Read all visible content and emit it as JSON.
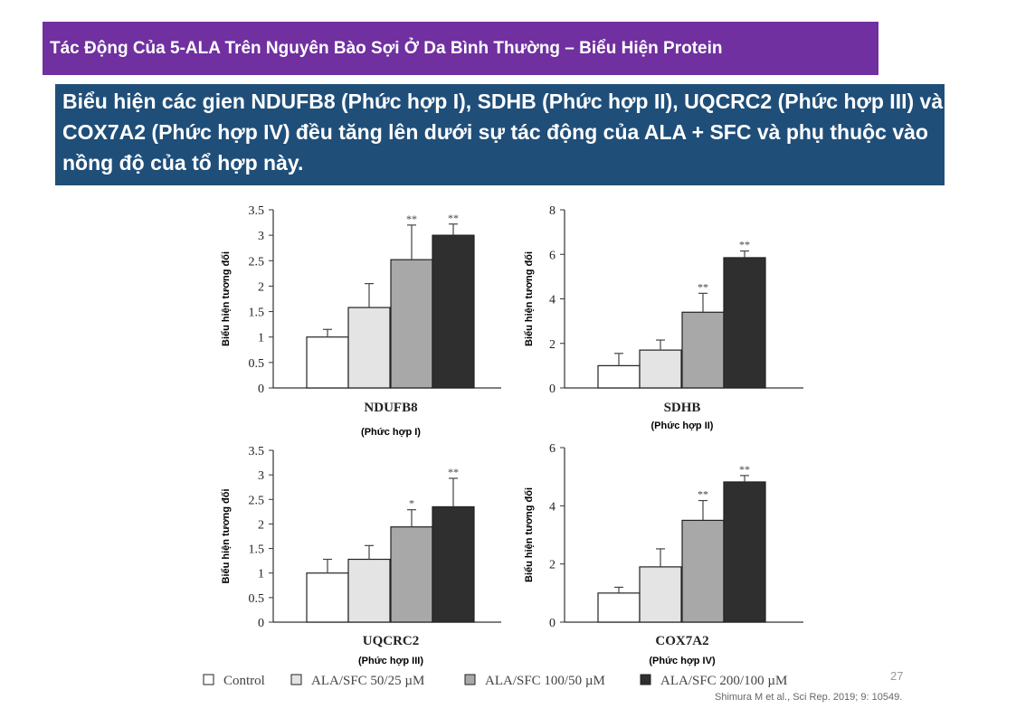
{
  "slide": {
    "title": "Tác Động Của 5-ALA Trên Nguyên Bào Sợi Ở Da Bình Thường – Biểu Hiện Protein",
    "subtitle": "Biểu hiện các gien NDUFB8 (Phức hợp I), SDHB (Phức hợp II), UQCRC2 (Phức hợp III) và COX7A2 (Phức hợp IV) đều tăng lên dưới sự tác động của ALA + SFC và phụ thuộc vào nồng độ của tổ hợp này.",
    "page_number": "27",
    "citation": "Shimura M et al., Sci Rep. 2019; 9: 10549."
  },
  "colors": {
    "title_bg": "#7030A0",
    "subtitle_bg": "#1F4E79",
    "bar_fills": [
      "#ffffff",
      "#e4e4e4",
      "#a8a8a8",
      "#2f2f2f"
    ]
  },
  "legend": [
    "Control",
    "ALA/SFC 50/25 µM",
    "ALA/SFC 100/50 µM",
    "ALA/SFC 200/100 µM"
  ],
  "chart_data": [
    {
      "type": "bar",
      "title": "NDUFB8",
      "subtitle": "(Phức hợp I)",
      "ylabel": "Biểu hiện tương đối",
      "ylim": [
        0,
        3.5
      ],
      "yticks": [
        "0",
        "0.5",
        "1",
        "1.5",
        "2",
        "2.5",
        "3",
        "3.5"
      ],
      "categories": [
        "Control",
        "ALA/SFC 50/25 µM",
        "ALA/SFC 100/50 µM",
        "ALA/SFC 200/100 µM"
      ],
      "values": [
        1.0,
        1.58,
        2.52,
        3.0
      ],
      "errors": [
        0.15,
        0.47,
        0.68,
        0.22
      ],
      "significance": [
        "",
        "",
        "**",
        "**"
      ]
    },
    {
      "type": "bar",
      "title": "SDHB",
      "subtitle": "(Phức hợp II)",
      "ylabel": "Biểu hiện tương đối",
      "ylim": [
        0,
        8
      ],
      "yticks": [
        "0",
        "2",
        "4",
        "6",
        "8"
      ],
      "categories": [
        "Control",
        "ALA/SFC 50/25 µM",
        "ALA/SFC 100/50 µM",
        "ALA/SFC 200/100 µM"
      ],
      "values": [
        1.0,
        1.7,
        3.4,
        5.85
      ],
      "errors": [
        0.55,
        0.45,
        0.85,
        0.3
      ],
      "significance": [
        "",
        "",
        "**",
        "**"
      ]
    },
    {
      "type": "bar",
      "title": "UQCRC2",
      "subtitle": "(Phức hợp III)",
      "ylabel": "Biểu hiện tương đối",
      "ylim": [
        0,
        3.5
      ],
      "yticks": [
        "0",
        "0.5",
        "1",
        "1.5",
        "2",
        "2.5",
        "3",
        "3.5"
      ],
      "categories": [
        "Control",
        "ALA/SFC 50/25 µM",
        "ALA/SFC 100/50 µM",
        "ALA/SFC 200/100 µM"
      ],
      "values": [
        1.0,
        1.28,
        1.94,
        2.35
      ],
      "errors": [
        0.28,
        0.28,
        0.35,
        0.58
      ],
      "significance": [
        "",
        "",
        "*",
        "**"
      ]
    },
    {
      "type": "bar",
      "title": "COX7A2",
      "subtitle": "(Phức hợp IV)",
      "ylabel": "Biểu hiện tương đối",
      "ylim": [
        0,
        6
      ],
      "yticks": [
        "0",
        "2",
        "4",
        "6"
      ],
      "categories": [
        "Control",
        "ALA/SFC 50/25 µM",
        "ALA/SFC 100/50 µM",
        "ALA/SFC 200/100 µM"
      ],
      "values": [
        1.0,
        1.9,
        3.5,
        4.82
      ],
      "errors": [
        0.2,
        0.62,
        0.68,
        0.22
      ],
      "significance": [
        "",
        "",
        "**",
        "**"
      ]
    }
  ]
}
